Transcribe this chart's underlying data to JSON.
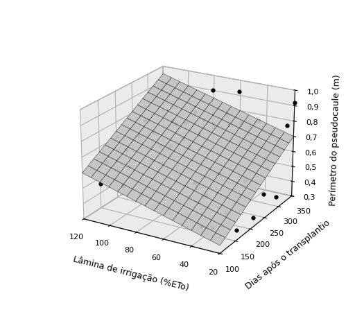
{
  "title": "",
  "xlabel": "Lâmina de irrigação (%ETo)",
  "ylabel": "Dias após o transplantio",
  "zlabel": "Perímetro do pseudocaule (m)",
  "xlim": [
    20,
    120
  ],
  "ylim": [
    100,
    350
  ],
  "zlim": [
    0.3,
    1.0
  ],
  "xticks": [
    20,
    40,
    60,
    80,
    100,
    120
  ],
  "yticks": [
    100,
    150,
    200,
    250,
    300,
    350
  ],
  "zticks": [
    0.3,
    0.4,
    0.5,
    0.6,
    0.7,
    0.8,
    0.9,
    1.0
  ],
  "scatter_points": [
    [
      120,
      150,
      0.46
    ],
    [
      120,
      170,
      0.57
    ],
    [
      120,
      200,
      0.7
    ],
    [
      120,
      230,
      0.58
    ],
    [
      100,
      140,
      0.5
    ],
    [
      100,
      160,
      0.6
    ],
    [
      100,
      190,
      0.76
    ],
    [
      100,
      230,
      0.55
    ],
    [
      100,
      290,
      0.57
    ],
    [
      80,
      130,
      0.97
    ],
    [
      80,
      155,
      0.86
    ],
    [
      80,
      175,
      0.75
    ],
    [
      80,
      200,
      0.7
    ],
    [
      80,
      220,
      0.84
    ],
    [
      80,
      255,
      0.8
    ],
    [
      80,
      285,
      0.83
    ],
    [
      80,
      315,
      0.75
    ],
    [
      80,
      345,
      0.91
    ],
    [
      70,
      220,
      0.71
    ],
    [
      60,
      130,
      1.0
    ],
    [
      60,
      160,
      0.85
    ],
    [
      60,
      210,
      0.82
    ],
    [
      60,
      255,
      0.83
    ],
    [
      60,
      305,
      0.83
    ],
    [
      60,
      345,
      0.93
    ],
    [
      50,
      155,
      0.6
    ],
    [
      50,
      190,
      0.47
    ],
    [
      50,
      230,
      0.56
    ],
    [
      50,
      265,
      0.83
    ],
    [
      50,
      305,
      0.79
    ],
    [
      40,
      130,
      0.38
    ],
    [
      40,
      165,
      0.32
    ],
    [
      40,
      210,
      0.35
    ],
    [
      40,
      275,
      0.47
    ],
    [
      40,
      320,
      0.8
    ],
    [
      30,
      200,
      0.27
    ],
    [
      20,
      210,
      0.36
    ],
    [
      20,
      245,
      0.46
    ],
    [
      20,
      290,
      0.38
    ],
    [
      20,
      325,
      0.8
    ],
    [
      20,
      350,
      0.92
    ]
  ],
  "surface_color": "white",
  "surface_alpha": 0.95,
  "surface_edgecolor": "black",
  "surface_linewidth": 0.3,
  "scatter_color": "black",
  "scatter_size": 12,
  "xlabel_fontsize": 9,
  "ylabel_fontsize": 9,
  "zlabel_fontsize": 9,
  "tick_fontsize": 8,
  "surface_nx": 16,
  "surface_ny": 16,
  "coeff_lam": 0.0025,
  "coeff_day": 0.0014,
  "coeff_intercept": 0.08,
  "elev": 22,
  "azim": -60,
  "pane_color": "#d8d8d8"
}
